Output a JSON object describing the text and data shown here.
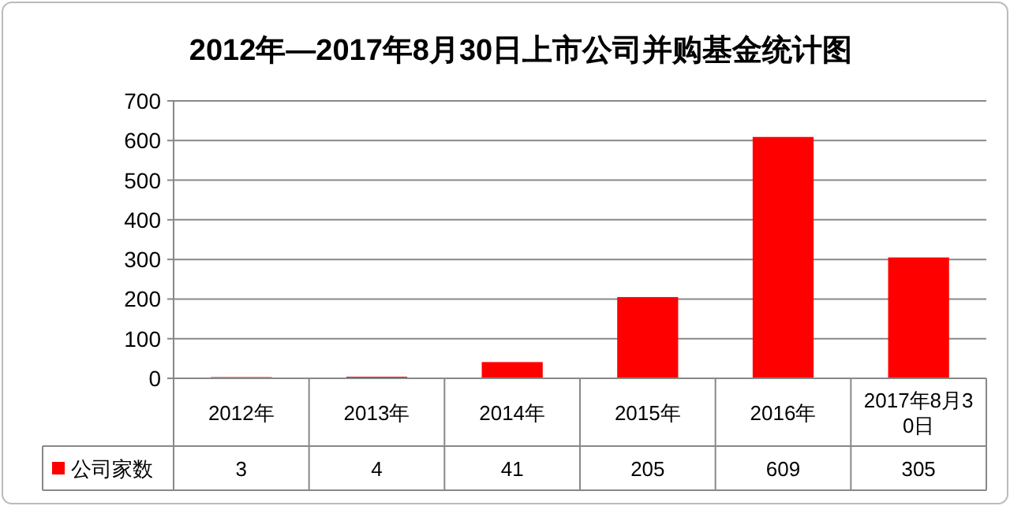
{
  "chart_data": {
    "type": "bar",
    "title": "2012年—2017年8月30日上市公司并购基金统计图",
    "categories": [
      "2012年",
      "2013年",
      "2014年",
      "2015年",
      "2016年",
      "2017年8月30日"
    ],
    "series": [
      {
        "name": "公司家数",
        "color": "#ff0000",
        "values": [
          3,
          4,
          41,
          205,
          609,
          305
        ]
      }
    ],
    "ylim": [
      0,
      700
    ],
    "yticks": [
      0,
      100,
      200,
      300,
      400,
      500,
      600,
      700
    ],
    "grid": "y",
    "data_labels": true,
    "legend": "bottom left"
  }
}
